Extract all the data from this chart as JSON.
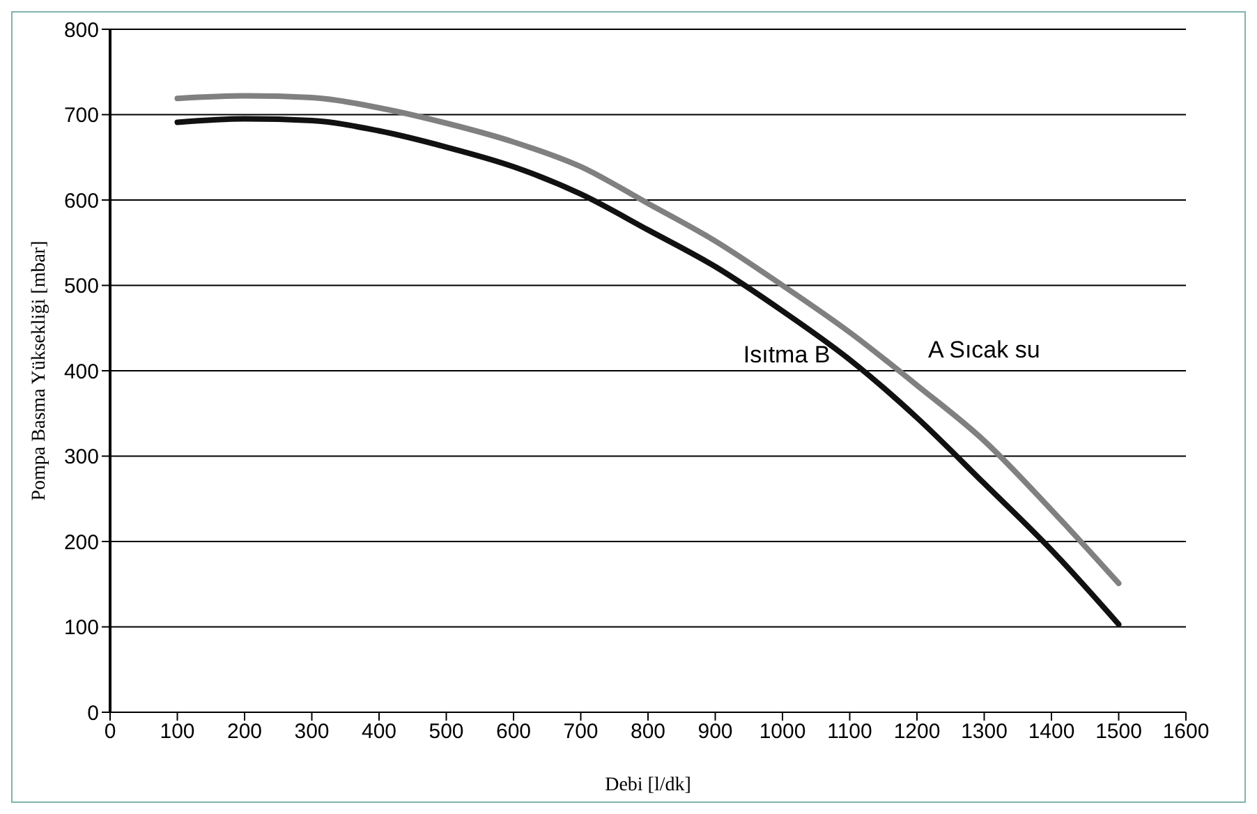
{
  "chart_data": {
    "type": "line",
    "xlabel": "Debi [l/dk]",
    "ylabel": "Pompa Basma Yüksekliği [mbar]",
    "x": [
      100,
      200,
      300,
      400,
      500,
      600,
      700,
      800,
      900,
      1000,
      1100,
      1200,
      1300,
      1400,
      1500
    ],
    "series": [
      {
        "name": "A Sıcak su",
        "color": "#808080",
        "values": [
          719,
          722,
          720,
          708,
          690,
          668,
          639,
          596,
          552,
          500,
          445,
          383,
          318,
          237,
          151
        ]
      },
      {
        "name": "Isıtma B",
        "color": "#111111",
        "values": [
          691,
          695,
          693,
          681,
          662,
          639,
          607,
          565,
          522,
          470,
          413,
          345,
          268,
          190,
          103
        ]
      }
    ],
    "xlim": [
      0,
      1600
    ],
    "xticks": [
      0,
      100,
      200,
      300,
      400,
      500,
      600,
      700,
      800,
      900,
      1000,
      1100,
      1200,
      1300,
      1400,
      1500,
      1600
    ],
    "ylim": [
      0,
      800
    ],
    "yticks": [
      0,
      100,
      200,
      300,
      400,
      500,
      600,
      700,
      800
    ],
    "grid": "y",
    "marker": "none",
    "line_style": "solid"
  }
}
